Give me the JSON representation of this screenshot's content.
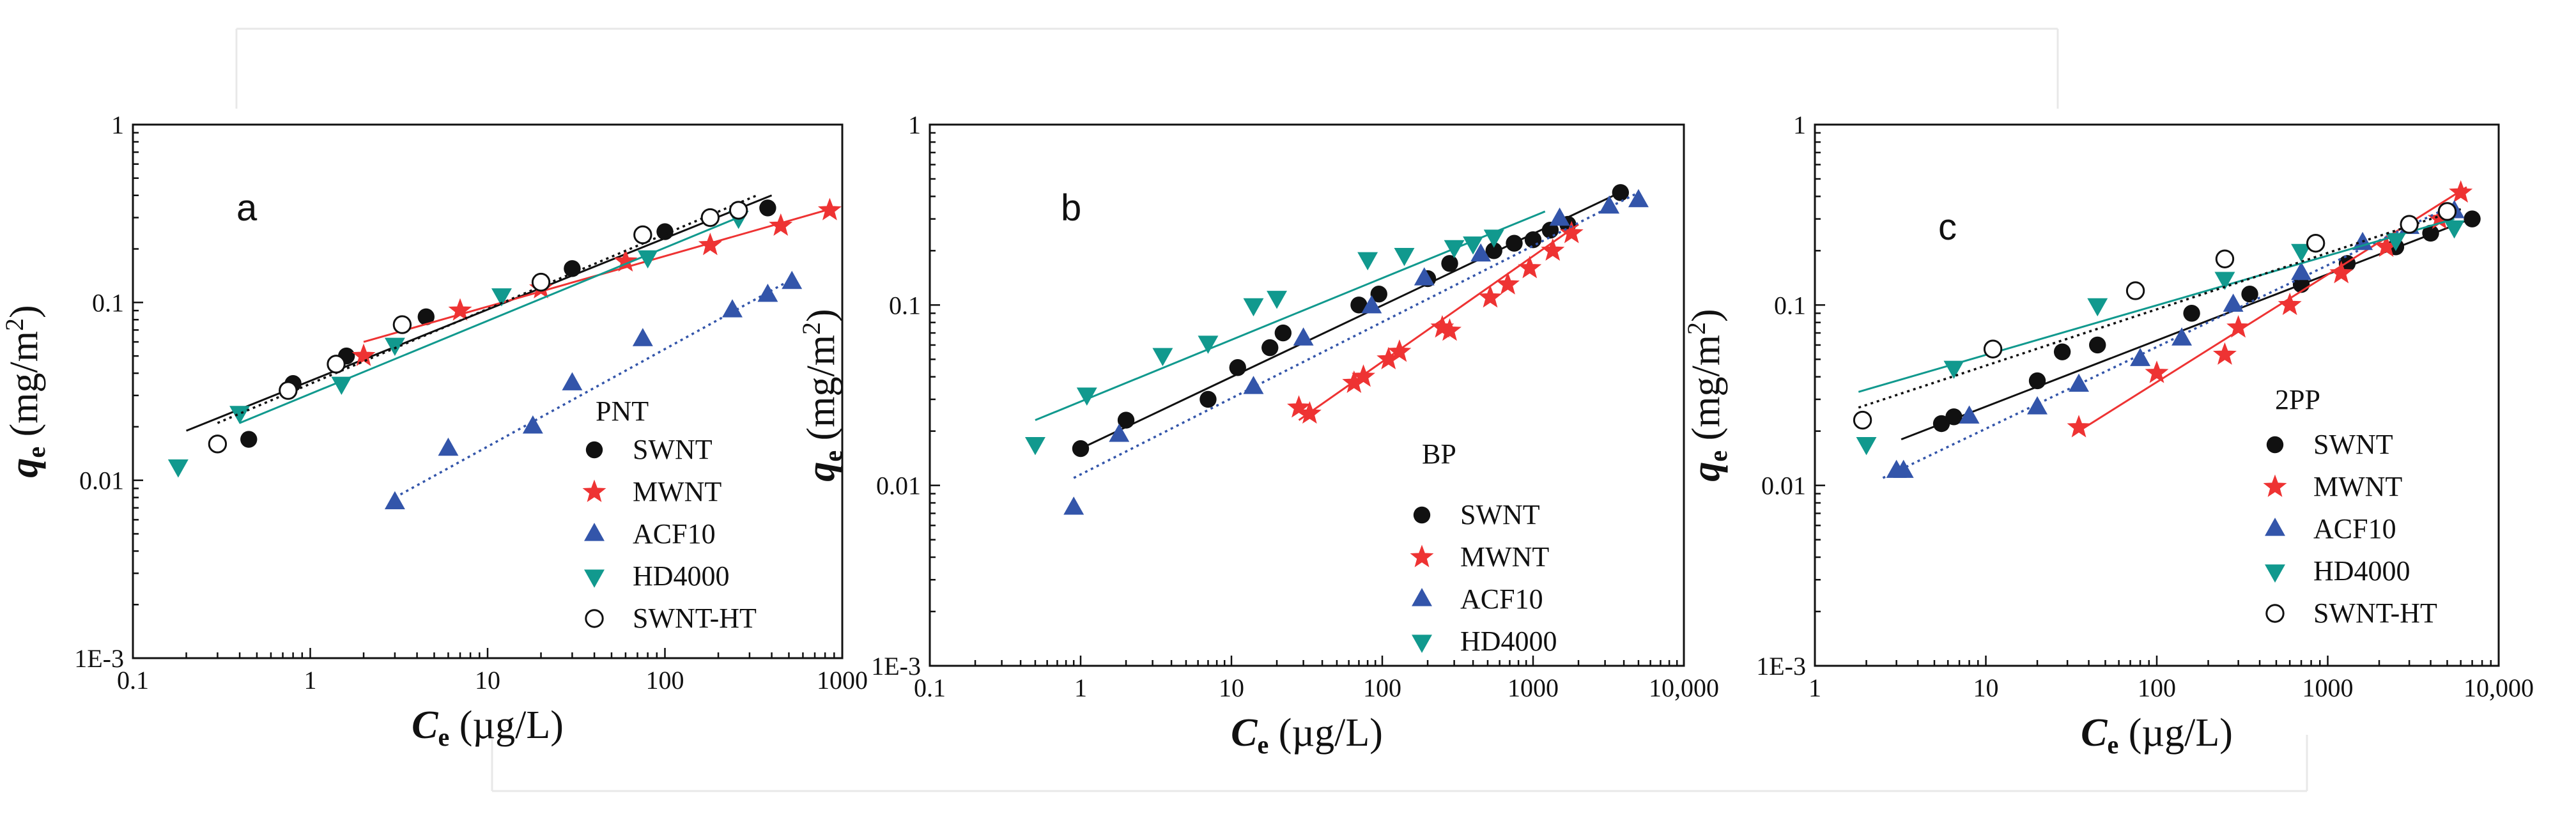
{
  "colors": {
    "SWNT": "#111111",
    "MWNT": "#ee3333",
    "ACF10": "#3355aa",
    "HD4000": "#11998e",
    "SWNT-HT": "#111111"
  },
  "chart_data": [
    {
      "type": "scatter",
      "panel_label": "a",
      "legend_title": "PNT",
      "xlabel": {
        "main": "C",
        "sub": "e",
        "unit": " (µg/L)"
      },
      "ylabel": {
        "main": "q",
        "sub": "e",
        "unit": " (mg/m",
        "sup": "2",
        "close": ")"
      },
      "xscale": "log",
      "yscale": "log",
      "xlim": [
        0.1,
        1000
      ],
      "ylim": [
        0.001,
        1
      ],
      "xticks": [
        0.1,
        1,
        10,
        100,
        1000
      ],
      "xtick_labels": [
        "0.1",
        "1",
        "10",
        "100",
        "1000"
      ],
      "yticks": [
        0.001,
        0.01,
        0.1,
        1
      ],
      "ytick_labels": [
        "1E-3",
        "0.01",
        "0.1",
        "1"
      ],
      "legend_position": "bottom-right",
      "series": [
        {
          "name": "SWNT",
          "marker": "circle",
          "fill": true,
          "line": "solid",
          "x": [
            0.45,
            0.8,
            1.6,
            4.5,
            30,
            100,
            380
          ],
          "y": [
            0.017,
            0.035,
            0.05,
            0.083,
            0.155,
            0.25,
            0.34
          ],
          "fit": [
            [
              0.2,
              0.019
            ],
            [
              400,
              0.4
            ]
          ]
        },
        {
          "name": "MWNT",
          "marker": "star",
          "fill": true,
          "line": "solid",
          "x": [
            2,
            7,
            20,
            60,
            180,
            450,
            850
          ],
          "y": [
            0.05,
            0.09,
            0.12,
            0.17,
            0.21,
            0.27,
            0.33
          ],
          "fit": [
            [
              2,
              0.06
            ],
            [
              900,
              0.34
            ]
          ]
        },
        {
          "name": "ACF10",
          "marker": "triangle-up",
          "fill": true,
          "line": "dotted",
          "x": [
            3,
            6,
            18,
            30,
            75,
            240,
            380,
            520
          ],
          "y": [
            0.0075,
            0.015,
            0.02,
            0.035,
            0.062,
            0.09,
            0.11,
            0.13
          ],
          "fit": [
            [
              3,
              0.008
            ],
            [
              520,
              0.135
            ]
          ]
        },
        {
          "name": "HD4000",
          "marker": "triangle-down",
          "fill": true,
          "line": "solid",
          "x": [
            0.18,
            0.4,
            1.5,
            3,
            12,
            80,
            260
          ],
          "y": [
            0.012,
            0.024,
            0.035,
            0.058,
            0.11,
            0.18,
            0.3
          ],
          "fit": [
            [
              0.4,
              0.021
            ],
            [
              280,
              0.31
            ]
          ]
        },
        {
          "name": "SWNT-HT",
          "marker": "circle",
          "fill": false,
          "line": "dotted",
          "x": [
            0.3,
            0.75,
            1.4,
            3.3,
            20,
            75,
            180,
            260
          ],
          "y": [
            0.016,
            0.032,
            0.045,
            0.075,
            0.13,
            0.24,
            0.3,
            0.33
          ],
          "fit": [
            [
              0.3,
              0.021
            ],
            [
              330,
              0.4
            ]
          ]
        }
      ]
    },
    {
      "type": "scatter",
      "panel_label": "b",
      "legend_title": "BP",
      "xlabel": {
        "main": "C",
        "sub": "e",
        "unit": " (µg/L)"
      },
      "ylabel": {
        "main": "q",
        "sub": "e",
        "unit": " (mg/m",
        "sup": "2",
        "close": ")"
      },
      "xscale": "log",
      "yscale": "log",
      "xlim": [
        0.1,
        10000
      ],
      "ylim": [
        0.001,
        1
      ],
      "xticks": [
        0.1,
        1,
        10,
        100,
        1000,
        10000
      ],
      "xtick_labels": [
        "0.1",
        "1",
        "10",
        "100",
        "1000",
        "10,000"
      ],
      "yticks": [
        0.001,
        0.01,
        0.1,
        1
      ],
      "ytick_labels": [
        "1E-3",
        "0.01",
        "0.1",
        "1"
      ],
      "legend_position": "bottom-right",
      "series": [
        {
          "name": "SWNT",
          "marker": "circle",
          "fill": true,
          "line": "solid",
          "x": [
            1,
            2,
            7,
            11,
            18,
            22,
            70,
            95,
            200,
            280,
            550,
            750,
            1000,
            1300,
            1700,
            3800
          ],
          "y": [
            0.016,
            0.023,
            0.03,
            0.045,
            0.058,
            0.07,
            0.1,
            0.115,
            0.14,
            0.17,
            0.2,
            0.22,
            0.23,
            0.26,
            0.28,
            0.42
          ],
          "fit": [
            [
              1,
              0.016
            ],
            [
              4000,
              0.43
            ]
          ]
        },
        {
          "name": "MWNT",
          "marker": "star",
          "fill": true,
          "line": "solid",
          "x": [
            28,
            33,
            65,
            75,
            110,
            130,
            250,
            280,
            520,
            680,
            950,
            1350,
            1800
          ],
          "y": [
            0.027,
            0.025,
            0.037,
            0.04,
            0.05,
            0.055,
            0.075,
            0.072,
            0.11,
            0.13,
            0.16,
            0.2,
            0.25
          ],
          "fit": [
            [
              28,
              0.023
            ],
            [
              2000,
              0.28
            ]
          ]
        },
        {
          "name": "ACF10",
          "marker": "triangle-up",
          "fill": true,
          "line": "dotted",
          "x": [
            0.9,
            1.8,
            14,
            30,
            85,
            190,
            450,
            1500,
            3200,
            5000
          ],
          "y": [
            0.0075,
            0.019,
            0.035,
            0.065,
            0.098,
            0.14,
            0.19,
            0.3,
            0.35,
            0.38
          ],
          "fit": [
            [
              0.9,
              0.011
            ],
            [
              5000,
              0.42
            ]
          ]
        },
        {
          "name": "HD4000",
          "marker": "triangle-down",
          "fill": true,
          "line": "solid",
          "x": [
            0.5,
            1.1,
            3.5,
            7,
            14,
            20,
            80,
            140,
            300,
            400,
            550
          ],
          "y": [
            0.017,
            0.032,
            0.053,
            0.062,
            0.1,
            0.11,
            0.18,
            0.19,
            0.21,
            0.22,
            0.24
          ],
          "fit": [
            [
              0.5,
              0.023
            ],
            [
              1200,
              0.33
            ]
          ]
        }
      ]
    },
    {
      "type": "scatter",
      "panel_label": "c",
      "legend_title": "2PP",
      "xlabel": {
        "main": "C",
        "sub": "e",
        "unit": " (µg/L)"
      },
      "ylabel": {
        "main": "q",
        "sub": "e",
        "unit": " (mg/m",
        "sup": "2",
        "close": ")"
      },
      "xscale": "log",
      "yscale": "log",
      "xlim": [
        1,
        10000
      ],
      "ylim": [
        0.001,
        1
      ],
      "xticks": [
        1,
        10,
        100,
        1000,
        10000
      ],
      "xtick_labels": [
        "1",
        "10",
        "100",
        "1000",
        "10,000"
      ],
      "yticks": [
        0.001,
        0.01,
        0.1,
        1
      ],
      "ytick_labels": [
        "1E-3",
        "0.01",
        "0.1",
        "1"
      ],
      "legend_position": "bottom-right",
      "series": [
        {
          "name": "SWNT",
          "marker": "circle",
          "fill": true,
          "line": "solid",
          "x": [
            5.5,
            6.5,
            20,
            28,
            45,
            160,
            350,
            700,
            1300,
            2500,
            4000,
            7000
          ],
          "y": [
            0.022,
            0.024,
            0.038,
            0.055,
            0.06,
            0.09,
            0.115,
            0.13,
            0.17,
            0.21,
            0.25,
            0.3
          ],
          "fit": [
            [
              3.2,
              0.018
            ],
            [
              7500,
              0.31
            ]
          ]
        },
        {
          "name": "MWNT",
          "marker": "star",
          "fill": true,
          "line": "solid",
          "x": [
            35,
            100,
            250,
            300,
            600,
            1200,
            2200,
            4500,
            6000
          ],
          "y": [
            0.021,
            0.042,
            0.053,
            0.075,
            0.1,
            0.15,
            0.21,
            0.3,
            0.42
          ],
          "fit": [
            [
              35,
              0.02
            ],
            [
              6500,
              0.45
            ]
          ]
        },
        {
          "name": "ACF10",
          "marker": "triangle-up",
          "fill": true,
          "line": "dotted",
          "x": [
            3,
            3.3,
            8,
            20,
            35,
            80,
            140,
            280,
            700,
            1600,
            3000,
            5500
          ],
          "y": [
            0.012,
            0.012,
            0.024,
            0.027,
            0.036,
            0.05,
            0.065,
            0.1,
            0.15,
            0.22,
            0.27,
            0.33
          ],
          "fit": [
            [
              2.5,
              0.011
            ],
            [
              5500,
              0.36
            ]
          ]
        },
        {
          "name": "HD4000",
          "marker": "triangle-down",
          "fill": true,
          "line": "solid",
          "x": [
            2,
            6.5,
            45,
            250,
            700,
            2500,
            5500
          ],
          "y": [
            0.017,
            0.045,
            0.1,
            0.14,
            0.2,
            0.23,
            0.27
          ],
          "fit": [
            [
              1.8,
              0.033
            ],
            [
              5500,
              0.3
            ]
          ]
        },
        {
          "name": "SWNT-HT",
          "marker": "circle",
          "fill": false,
          "line": "dotted",
          "x": [
            1.9,
            11,
            75,
            250,
            850,
            3000,
            5000
          ],
          "y": [
            0.023,
            0.057,
            0.12,
            0.18,
            0.22,
            0.28,
            0.33
          ],
          "fit": [
            [
              1.8,
              0.027
            ],
            [
              6000,
              0.34
            ]
          ]
        }
      ]
    }
  ]
}
